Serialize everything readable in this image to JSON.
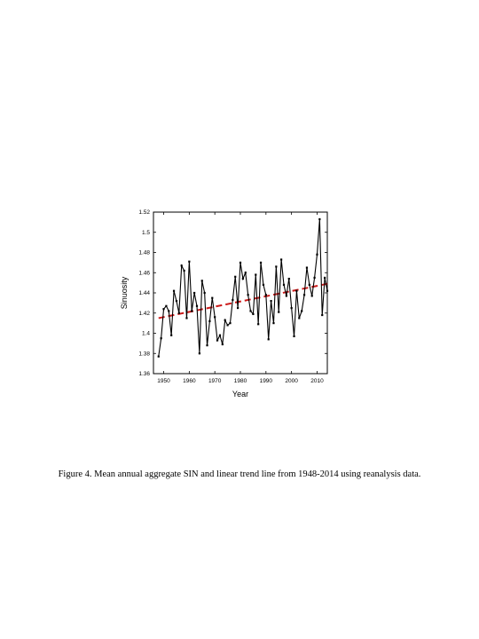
{
  "caption": "Figure 4. Mean annual aggregate SIN and linear trend line from 1948-2014 using reanalysis data.",
  "chart_data": {
    "type": "line",
    "xlabel": "Year",
    "ylabel": "Sinuosity",
    "xlim": [
      1946,
      2014
    ],
    "ylim": [
      1.36,
      1.52
    ],
    "xticks": [
      "1950",
      "1960",
      "1970",
      "1980",
      "1990",
      "2000",
      "2010"
    ],
    "yticks": [
      "1.36",
      "1.38",
      "1.4",
      "1.42",
      "1.44",
      "1.46",
      "1.48",
      "1.5",
      "1.52"
    ],
    "grid": false,
    "series": [
      {
        "x": [
          1948,
          1949,
          1950,
          1951,
          1952,
          1953,
          1954,
          1955,
          1956,
          1957,
          1958,
          1959,
          1960,
          1961,
          1962,
          1963,
          1964,
          1965,
          1966,
          1967,
          1968,
          1969,
          1970,
          1971,
          1972,
          1973,
          1974,
          1975,
          1976,
          1977,
          1978,
          1979,
          1980,
          1981,
          1982,
          1983,
          1984,
          1985,
          1986,
          1987,
          1988,
          1989,
          1990,
          1991,
          1992,
          1993,
          1994,
          1995,
          1996,
          1997,
          1998,
          1999,
          2000,
          2001,
          2002,
          2003,
          2004,
          2005,
          2006,
          2007,
          2008,
          2009,
          2010,
          2011,
          2012,
          2013,
          2014
        ],
        "y": [
          1.377,
          1.395,
          1.424,
          1.427,
          1.422,
          1.398,
          1.442,
          1.432,
          1.42,
          1.467,
          1.462,
          1.415,
          1.471,
          1.422,
          1.44,
          1.427,
          1.38,
          1.452,
          1.44,
          1.388,
          1.412,
          1.435,
          1.416,
          1.393,
          1.398,
          1.389,
          1.413,
          1.408,
          1.41,
          1.433,
          1.456,
          1.425,
          1.47,
          1.454,
          1.46,
          1.438,
          1.422,
          1.419,
          1.458,
          1.409,
          1.47,
          1.448,
          1.438,
          1.394,
          1.432,
          1.41,
          1.466,
          1.421,
          1.473,
          1.448,
          1.437,
          1.454,
          1.425,
          1.397,
          1.442,
          1.415,
          1.422,
          1.438,
          1.465,
          1.448,
          1.437,
          1.455,
          1.478,
          1.513,
          1.418,
          1.455,
          1.442
        ],
        "color": "#000000"
      },
      {
        "type": "trend",
        "x": [
          1948,
          2014
        ],
        "y": [
          1.415,
          1.449
        ],
        "color": "#cc1a1a",
        "style": "dashed"
      }
    ]
  }
}
